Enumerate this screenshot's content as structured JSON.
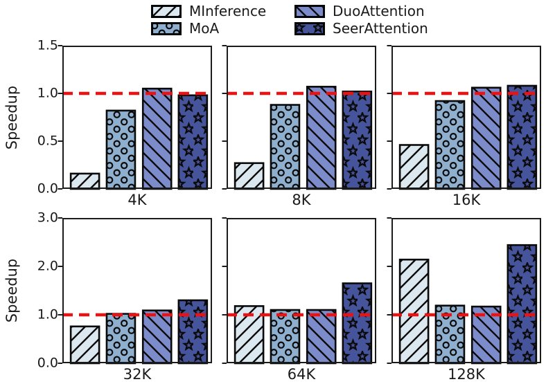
{
  "legend": {
    "items": [
      {
        "label": "MInference",
        "color": "#dce8f0",
        "hatch": "diagonal-forward"
      },
      {
        "label": "MoA",
        "color": "#8fafce",
        "hatch": "circles"
      },
      {
        "label": "DuoAttention",
        "color": "#7c8cca",
        "hatch": "diagonal-back"
      },
      {
        "label": "SeerAttention",
        "color": "#46549b",
        "hatch": "stars"
      }
    ]
  },
  "chart_data": {
    "type": "bar",
    "series_names": [
      "MInference",
      "MoA",
      "DuoAttention",
      "SeerAttention"
    ],
    "reference_line": {
      "y": 1.0,
      "color": "#ee1111",
      "style": "dashed"
    },
    "edge_color": "#0a0a0a",
    "axis_color": "#1b1b1b",
    "rows": [
      {
        "ylabel": "Speedup",
        "ylim": [
          0,
          1.5
        ],
        "yticks": [
          "0.0",
          "0.5",
          "1.0",
          "1.5"
        ],
        "subplots": [
          {
            "category": "4K",
            "values": [
              0.16,
              0.82,
              1.05,
              0.98
            ]
          },
          {
            "category": "8K",
            "values": [
              0.27,
              0.88,
              1.07,
              1.02
            ]
          },
          {
            "category": "16K",
            "values": [
              0.46,
              0.92,
              1.06,
              1.08
            ]
          }
        ]
      },
      {
        "ylabel": "Speedup",
        "ylim": [
          0,
          3.0
        ],
        "yticks": [
          "0.0",
          "1.0",
          "2.0",
          "3.0"
        ],
        "subplots": [
          {
            "category": "32K",
            "values": [
              0.76,
              1.02,
              1.09,
              1.3
            ]
          },
          {
            "category": "64K",
            "values": [
              1.18,
              1.1,
              1.1,
              1.65
            ]
          },
          {
            "category": "128K",
            "values": [
              2.14,
              1.19,
              1.17,
              2.44
            ]
          }
        ]
      }
    ]
  }
}
